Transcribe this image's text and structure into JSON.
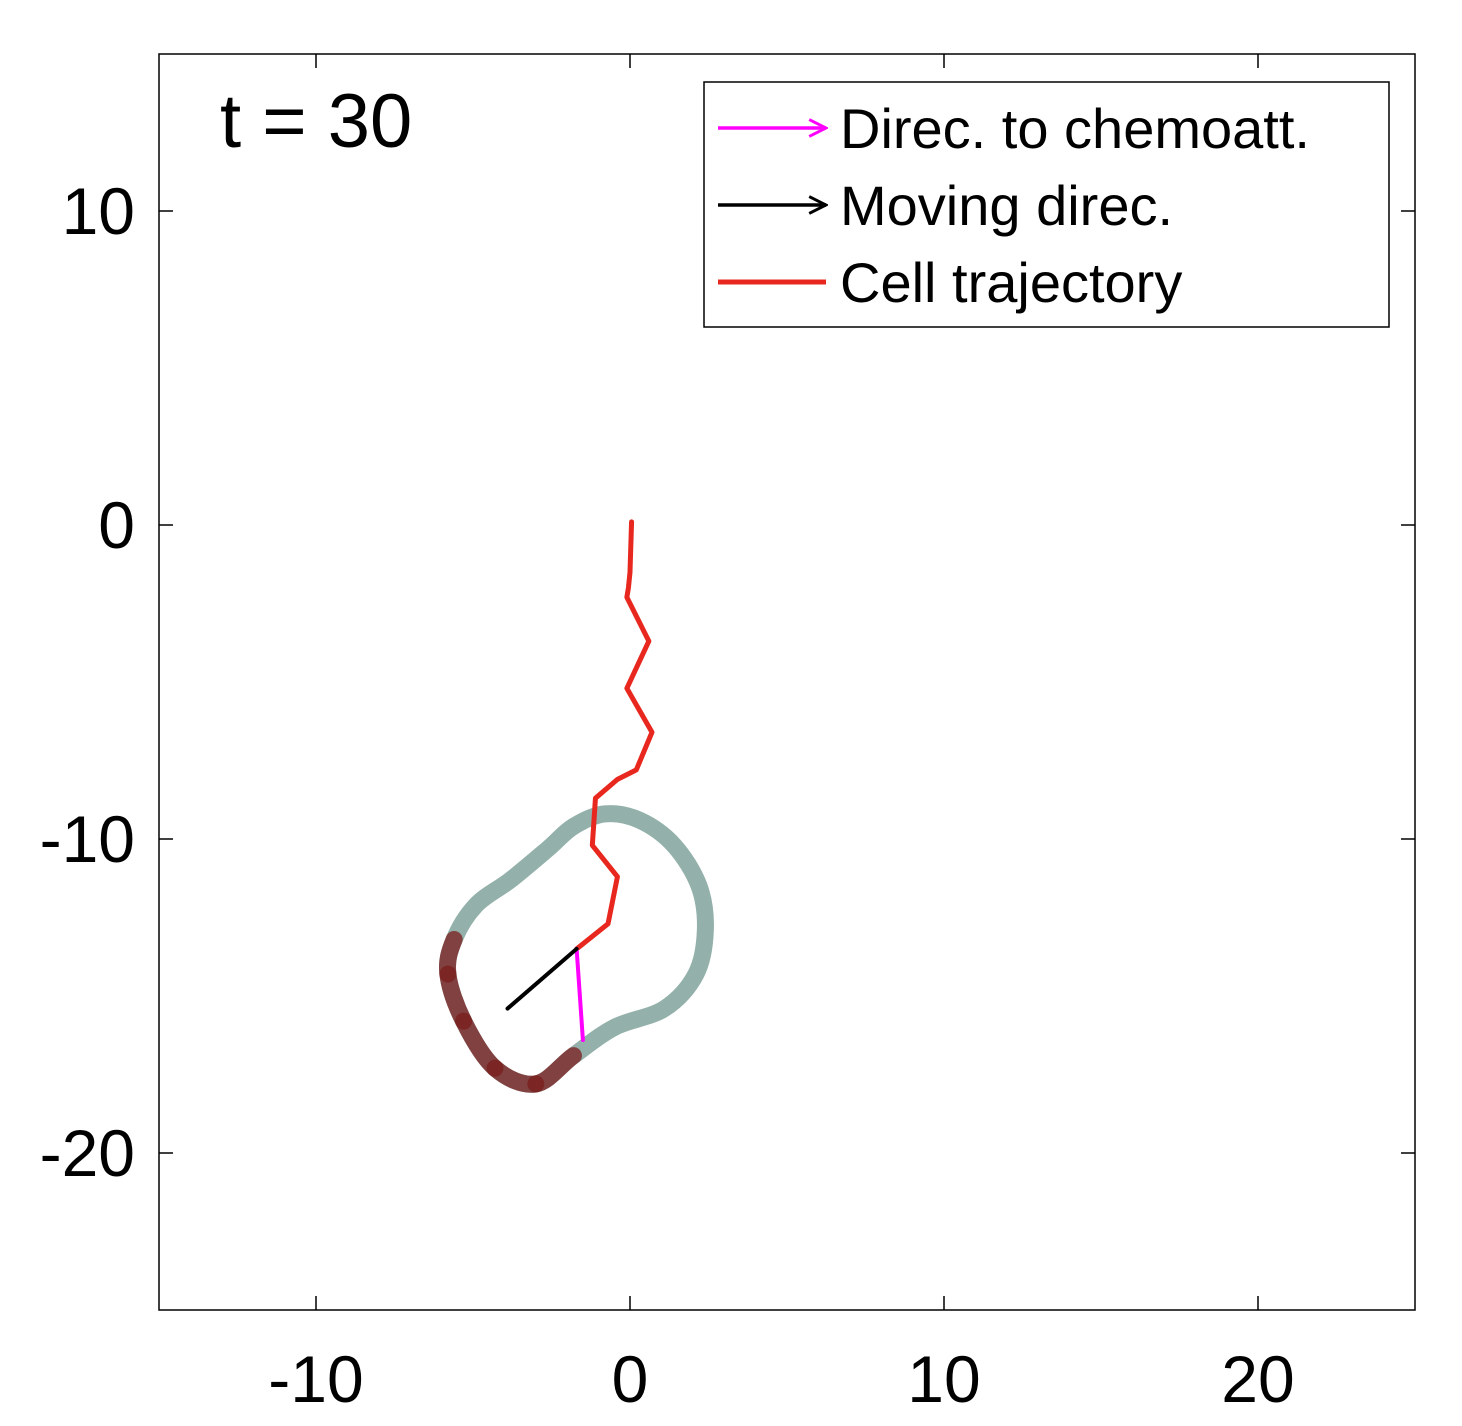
{
  "chart_data": {
    "type": "line",
    "title": "",
    "xlabel": "",
    "ylabel": "",
    "xlim": [
      -15,
      25
    ],
    "ylim": [
      -25,
      15
    ],
    "xticks": [
      -10,
      0,
      10,
      20
    ],
    "yticks": [
      -20,
      -10,
      0,
      10
    ],
    "xtick_labels": [
      "-10",
      "0",
      "10",
      "20"
    ],
    "ytick_labels": [
      "-20",
      "-10",
      "0",
      "10"
    ],
    "grid": false,
    "legend_position": "top-right",
    "annotation": "t = 30",
    "series": [
      {
        "name": "Direc. to chemoatt.",
        "kind": "arrow",
        "color": "#ff00ff",
        "x": [
          -1.7,
          -1.5
        ],
        "y": [
          -13.5,
          -16.4
        ]
      },
      {
        "name": "Moving direc.",
        "kind": "arrow",
        "color": "#000000",
        "x": [
          -1.7,
          -3.9
        ],
        "y": [
          -13.5,
          -15.4
        ]
      },
      {
        "name": "Cell trajectory",
        "kind": "line",
        "color": "#e8281e",
        "x": [
          0.05,
          0.0,
          -0.05,
          -0.1,
          0.6,
          -0.1,
          0.7,
          0.2,
          -0.4,
          -1.1,
          -1.2,
          -0.4,
          -0.7,
          -1.7
        ],
        "y": [
          0.1,
          -1.5,
          -2.0,
          -2.3,
          -3.7,
          -5.2,
          -6.6,
          -7.8,
          -8.1,
          -8.7,
          -10.2,
          -11.2,
          -12.7,
          -13.5
        ]
      },
      {
        "name": "",
        "kind": "cell-boundary",
        "color": "#93b1aa",
        "highlight_color": "#7a1c1c",
        "x": [
          -0.8,
          0.3,
          1.4,
          2.2,
          2.4,
          2.1,
          1.1,
          -0.5,
          -1.8,
          -3.0,
          -4.3,
          -5.3,
          -5.8,
          -5.6,
          -4.9,
          -3.8,
          -2.6,
          -1.8
        ],
        "y": [
          -9.2,
          -9.4,
          -10.2,
          -11.5,
          -12.9,
          -14.3,
          -15.4,
          -16.0,
          -16.9,
          -17.8,
          -17.3,
          -15.8,
          -14.3,
          -13.2,
          -12.1,
          -11.3,
          -10.3,
          -9.6
        ]
      }
    ]
  }
}
